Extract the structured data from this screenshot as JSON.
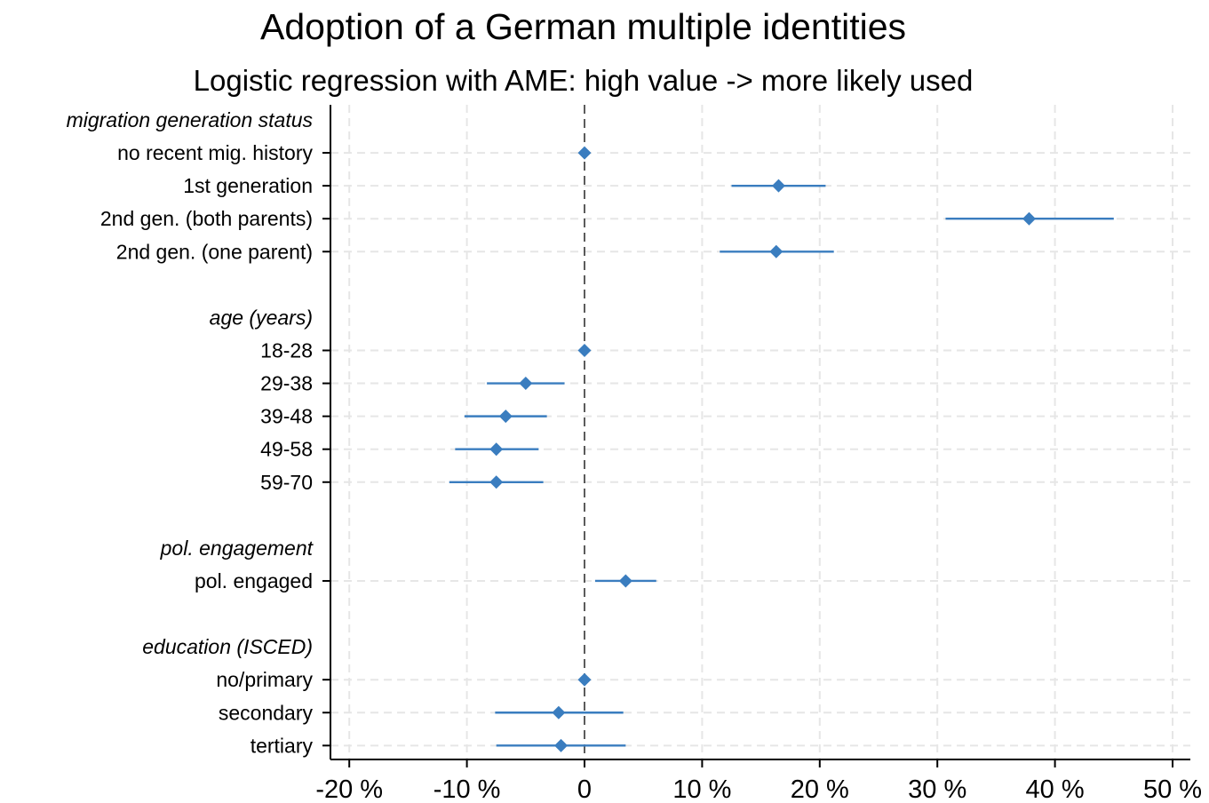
{
  "chart_data": {
    "type": "scatter",
    "title": "Adoption of a German multiple identities",
    "subtitle": "Logistic regression with AME: high value -> more likely used",
    "xlabel": "",
    "ylabel": "",
    "x_tick_labels": [
      "-20 %",
      "-10 %",
      "0",
      "10 %",
      "20 %",
      "30 %",
      "40 %",
      "50 %"
    ],
    "x_ticks": [
      -20,
      -10,
      0,
      10,
      20,
      30,
      40,
      50
    ],
    "xlim": [
      -21.5,
      51
    ],
    "reference_line": 0,
    "grid": true,
    "marker_color": "#3a7dbf",
    "rows": [
      {
        "type": "group",
        "label": "migration generation status"
      },
      {
        "type": "item",
        "label": "no recent mig. history",
        "estimate": 0,
        "ci_low": null,
        "ci_high": null
      },
      {
        "type": "item",
        "label": "1st generation",
        "estimate": 16.5,
        "ci_low": 12.5,
        "ci_high": 20.5
      },
      {
        "type": "item",
        "label": "2nd gen. (both parents)",
        "estimate": 37.8,
        "ci_low": 30.7,
        "ci_high": 45
      },
      {
        "type": "item",
        "label": "2nd gen. (one parent)",
        "estimate": 16.3,
        "ci_low": 11.5,
        "ci_high": 21.2
      },
      {
        "type": "spacer"
      },
      {
        "type": "group",
        "label": "age (years)"
      },
      {
        "type": "item",
        "label": "18-28",
        "estimate": 0,
        "ci_low": null,
        "ci_high": null
      },
      {
        "type": "item",
        "label": "29-38",
        "estimate": -5,
        "ci_low": -8.3,
        "ci_high": -1.7
      },
      {
        "type": "item",
        "label": "39-48",
        "estimate": -6.7,
        "ci_low": -10.2,
        "ci_high": -3.2
      },
      {
        "type": "item",
        "label": "49-58",
        "estimate": -7.5,
        "ci_low": -11,
        "ci_high": -3.9
      },
      {
        "type": "item",
        "label": "59-70",
        "estimate": -7.5,
        "ci_low": -11.5,
        "ci_high": -3.5
      },
      {
        "type": "spacer"
      },
      {
        "type": "group",
        "label": "pol. engagement"
      },
      {
        "type": "item",
        "label": "pol. engaged",
        "estimate": 3.5,
        "ci_low": 0.9,
        "ci_high": 6.1
      },
      {
        "type": "spacer"
      },
      {
        "type": "group",
        "label": "education (ISCED)"
      },
      {
        "type": "item",
        "label": "no/primary",
        "estimate": 0,
        "ci_low": null,
        "ci_high": null
      },
      {
        "type": "item",
        "label": "secondary",
        "estimate": -2.2,
        "ci_low": -7.6,
        "ci_high": 3.3
      },
      {
        "type": "item",
        "label": "tertiary",
        "estimate": -2,
        "ci_low": -7.5,
        "ci_high": 3.5
      }
    ]
  }
}
